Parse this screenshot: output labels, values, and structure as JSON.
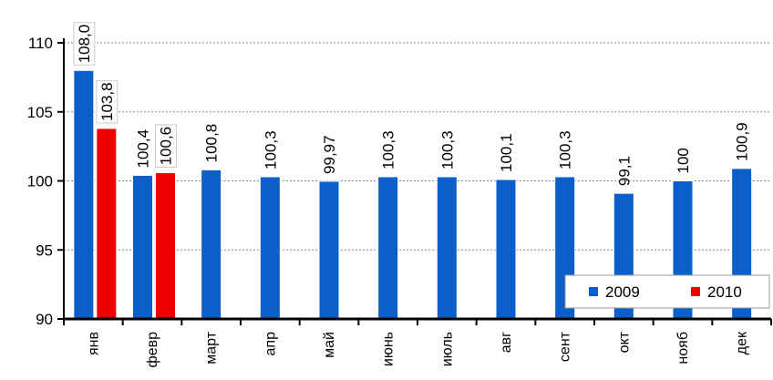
{
  "chart_data": {
    "type": "bar",
    "title": "",
    "xlabel": "",
    "ylabel": "",
    "ylim": [
      90,
      110
    ],
    "yticks": [
      90,
      95,
      100,
      105,
      110
    ],
    "grid": "dotted horizontal",
    "legend_position": "bottom-right",
    "categories": [
      "янв",
      "февр",
      "март",
      "апр",
      "май",
      "июнь",
      "июль",
      "авг",
      "сент",
      "окт",
      "нояб",
      "дек"
    ],
    "series": [
      {
        "name": "2009",
        "color": "#0a5fc8",
        "values": [
          108.0,
          100.4,
          100.8,
          100.3,
          99.97,
          100.3,
          100.3,
          100.1,
          100.3,
          99.1,
          100,
          100.9
        ],
        "labels": [
          "108,0",
          "100,4",
          "100,8",
          "100,3",
          "99,97",
          "100,3",
          "100,3",
          "100,1",
          "100,3",
          "99,1",
          "100",
          "100,9"
        ]
      },
      {
        "name": "2010",
        "color": "#ee0000",
        "values": [
          103.8,
          100.6,
          null,
          null,
          null,
          null,
          null,
          null,
          null,
          null,
          null,
          null
        ],
        "labels": [
          "103,8",
          "100,6",
          "",
          "",
          "",
          "",
          "",
          "",
          "",
          "",
          "",
          ""
        ]
      }
    ]
  }
}
